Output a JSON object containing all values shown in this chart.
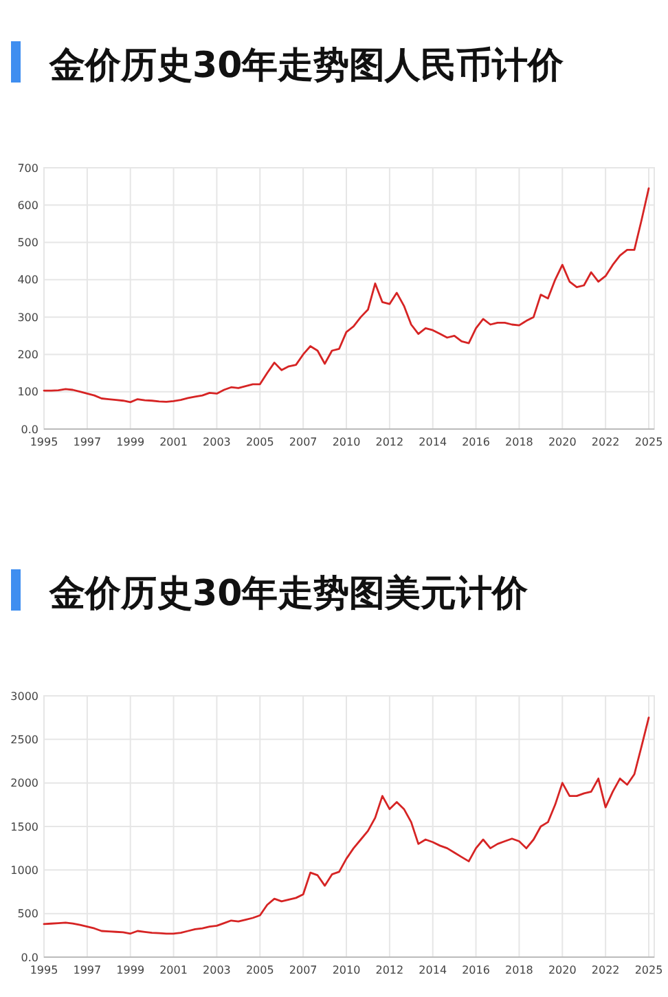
{
  "chart_data": [
    {
      "type": "line",
      "title": "金价历史30年走势图人民币计价",
      "categories": [
        "1995",
        null,
        null,
        null,
        null,
        null,
        "1997",
        null,
        null,
        null,
        null,
        null,
        "1999",
        null,
        null,
        null,
        null,
        null,
        "2001",
        null,
        null,
        null,
        null,
        null,
        "2003",
        null,
        null,
        null,
        null,
        null,
        "2005",
        null,
        null,
        null,
        null,
        null,
        "2007",
        null,
        null,
        null,
        null,
        null,
        "2010",
        null,
        null,
        null,
        null,
        null,
        "2012",
        null,
        null,
        null,
        null,
        null,
        "2014",
        null,
        null,
        null,
        null,
        null,
        "2016",
        null,
        null,
        null,
        null,
        null,
        "2018",
        null,
        null,
        null,
        null,
        null,
        "2020",
        null,
        null,
        null,
        null,
        null,
        "2022",
        null,
        null,
        null,
        null,
        null,
        "2025"
      ],
      "series": [
        {
          "color": "#d62424",
          "values": [
            103,
            103,
            104,
            107,
            105,
            100,
            95,
            90,
            82,
            80,
            78,
            76,
            72,
            80,
            77,
            76,
            74,
            73,
            75,
            78,
            83,
            87,
            90,
            97,
            95,
            105,
            112,
            110,
            115,
            120,
            120,
            150,
            178,
            158,
            168,
            172,
            200,
            222,
            210,
            175,
            210,
            215,
            260,
            275,
            300,
            320,
            390,
            340,
            335,
            365,
            330,
            280,
            255,
            270,
            265,
            255,
            245,
            250,
            235,
            230,
            270,
            295,
            280,
            285,
            285,
            280,
            278,
            290,
            300,
            360,
            350,
            400,
            440,
            395,
            380,
            385,
            420,
            395,
            410,
            440,
            465,
            480,
            480,
            560,
            645
          ]
        }
      ],
      "ylim": [
        0,
        700
      ],
      "yticks": [
        {
          "value": 0,
          "label": "0.0"
        },
        100,
        200,
        300,
        400,
        500,
        600,
        700
      ],
      "grid": true
    },
    {
      "type": "line",
      "title": "金价历史30年走势图美元计价",
      "categories": [
        "1995",
        null,
        null,
        null,
        null,
        null,
        "1997",
        null,
        null,
        null,
        null,
        null,
        "1999",
        null,
        null,
        null,
        null,
        null,
        "2001",
        null,
        null,
        null,
        null,
        null,
        "2003",
        null,
        null,
        null,
        null,
        null,
        "2005",
        null,
        null,
        null,
        null,
        null,
        "2007",
        null,
        null,
        null,
        null,
        null,
        "2010",
        null,
        null,
        null,
        null,
        null,
        "2012",
        null,
        null,
        null,
        null,
        null,
        "2014",
        null,
        null,
        null,
        null,
        null,
        "2016",
        null,
        null,
        null,
        null,
        null,
        "2018",
        null,
        null,
        null,
        null,
        null,
        "2020",
        null,
        null,
        null,
        null,
        null,
        "2022",
        null,
        null,
        null,
        null,
        null,
        "2025"
      ],
      "series": [
        {
          "color": "#d62424",
          "values": [
            380,
            385,
            390,
            395,
            385,
            370,
            350,
            330,
            300,
            295,
            290,
            285,
            270,
            300,
            290,
            280,
            275,
            270,
            270,
            280,
            300,
            320,
            330,
            350,
            360,
            390,
            420,
            410,
            430,
            450,
            480,
            600,
            670,
            640,
            660,
            680,
            720,
            970,
            940,
            820,
            950,
            980,
            1130,
            1250,
            1350,
            1450,
            1600,
            1850,
            1700,
            1780,
            1700,
            1550,
            1300,
            1350,
            1320,
            1280,
            1250,
            1200,
            1150,
            1100,
            1250,
            1350,
            1250,
            1300,
            1330,
            1360,
            1330,
            1250,
            1350,
            1500,
            1550,
            1750,
            2000,
            1850,
            1850,
            1880,
            1900,
            2050,
            1720,
            1900,
            2050,
            1980,
            2100,
            2420,
            2750
          ]
        }
      ],
      "ylim": [
        0,
        3000
      ],
      "yticks": [
        {
          "value": 0,
          "label": "0.0"
        },
        500,
        1000,
        1500,
        2000,
        2500,
        3000
      ],
      "grid": true
    }
  ]
}
